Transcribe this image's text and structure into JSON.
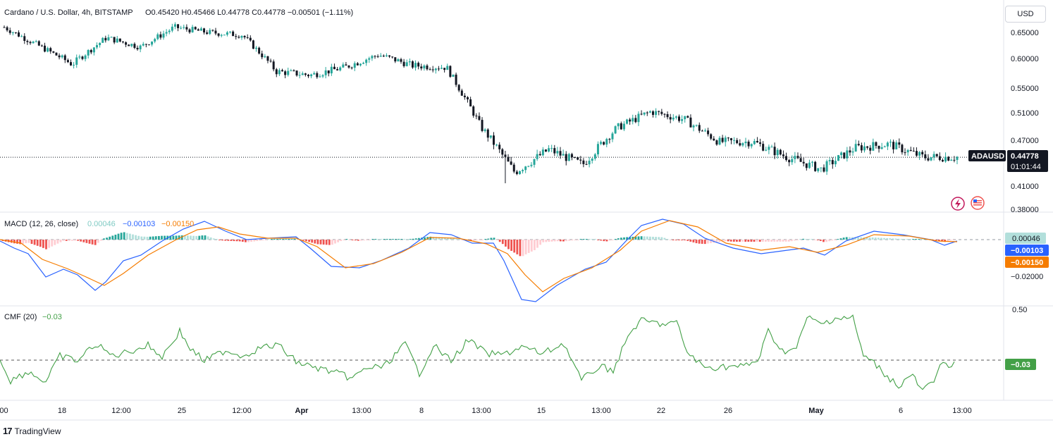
{
  "header": {
    "symbol": "Cardano / U.S. Dollar, 4h, BITSTAMP",
    "ohlc": "O0.45420  H0.45466  L0.44778  C0.44778  −0.00501 (−1.11%)"
  },
  "currency": "USD",
  "brand": "TradingView",
  "price_axis": [
    "0.65000",
    "0.60000",
    "0.55000",
    "0.51000",
    "0.47000",
    "0.41000",
    "0.38000"
  ],
  "price_axis_values": [
    0.65,
    0.6,
    0.55,
    0.51,
    0.47,
    0.41,
    0.38
  ],
  "last_price": {
    "symbol": "ADAUSD",
    "price": "0.44778",
    "countdown": "01:01:44",
    "value": 0.44778
  },
  "macd": {
    "title": "MACD (12, 26, close)",
    "hist_label": "0.00046",
    "macd_label": "−0.00103",
    "signal_label": "−0.00150",
    "axis": [
      "−0.02000"
    ],
    "hist_value": "0.00046",
    "macd_value": "−0.00103",
    "signal_value": "−0.00150"
  },
  "cmf": {
    "title": "CMF (20)",
    "value_label": "−0.03",
    "axis": [
      "0.50"
    ],
    "value": "−0.03"
  },
  "time_axis": [
    ":00",
    "18",
    "12:00",
    "25",
    "12:00",
    "Apr",
    "13:00",
    "8",
    "13:00",
    "15",
    "13:00",
    "22",
    "26",
    "May",
    "6",
    "13:00"
  ],
  "colors": {
    "up": "#26a69a",
    "down": "#131722",
    "macd": "#2962ff",
    "signal": "#f57c00",
    "hist_up": "#26a69a",
    "hist_up_light": "#b2dfdb",
    "hist_down": "#ef5350",
    "hist_down_light": "#ffcdd2",
    "cmf": "#43a047"
  },
  "chart_data": [
    {
      "type": "candlestick",
      "title": "Cardano / U.S. Dollar, 4h, BITSTAMP",
      "ylim": [
        0.38,
        0.67
      ],
      "key_points": [
        {
          "t": "Mar 14",
          "price": 0.66
        },
        {
          "t": "Mar 16",
          "price": 0.625
        },
        {
          "t": "Mar 18",
          "price": 0.59
        },
        {
          "t": "Mar 19",
          "price": 0.64
        },
        {
          "t": "Mar 21",
          "price": 0.622
        },
        {
          "t": "Mar 25",
          "price": 0.66
        },
        {
          "t": "Mar 27",
          "price": 0.65
        },
        {
          "t": "Mar 31",
          "price": 0.645
        },
        {
          "t": "Apr 2",
          "price": 0.578
        },
        {
          "t": "Apr 4",
          "price": 0.572
        },
        {
          "t": "Apr 6",
          "price": 0.585
        },
        {
          "t": "Apr 8",
          "price": 0.607
        },
        {
          "t": "Apr 9",
          "price": 0.588
        },
        {
          "t": "Apr 11",
          "price": 0.585
        },
        {
          "t": "Apr 12",
          "price": 0.49
        },
        {
          "t": "Apr 13",
          "price": 0.428
        },
        {
          "t": "Apr 14",
          "price": 0.458
        },
        {
          "t": "Apr 17",
          "price": 0.438
        },
        {
          "t": "Apr 19",
          "price": 0.488
        },
        {
          "t": "Apr 21",
          "price": 0.512
        },
        {
          "t": "Apr 23",
          "price": 0.5
        },
        {
          "t": "Apr 25",
          "price": 0.468
        },
        {
          "t": "Apr 27",
          "price": 0.468
        },
        {
          "t": "Apr 29",
          "price": 0.448
        },
        {
          "t": "May 1",
          "price": 0.432
        },
        {
          "t": "May 3",
          "price": 0.46
        },
        {
          "t": "May 5",
          "price": 0.465
        },
        {
          "t": "May 7",
          "price": 0.448
        },
        {
          "t": "May 8",
          "price": 0.448
        }
      ],
      "last": 0.44778
    },
    {
      "type": "line",
      "title": "MACD (12, 26, close)",
      "series": [
        {
          "name": "MACD",
          "last": -0.00103
        },
        {
          "name": "Signal",
          "last": -0.0015
        },
        {
          "name": "Histogram",
          "last": 0.00046
        }
      ]
    },
    {
      "type": "line",
      "title": "CMF (20)",
      "series": [
        {
          "name": "CMF",
          "last": -0.03
        }
      ]
    }
  ]
}
